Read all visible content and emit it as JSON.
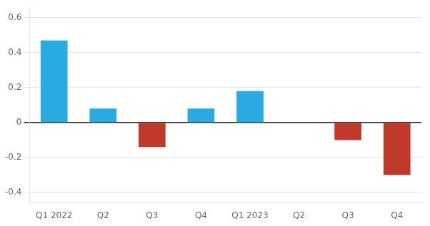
{
  "chart_data": {
    "type": "bar",
    "categories": [
      "Q1 2022",
      "Q2",
      "Q3",
      "Q4",
      "Q1 2023",
      "Q2",
      "Q3",
      "Q4"
    ],
    "values": [
      0.47,
      0.08,
      -0.14,
      0.08,
      0.18,
      0.0,
      -0.1,
      -0.3
    ],
    "colors": [
      "#29abe2",
      "#29abe2",
      "#c0392b",
      "#29abe2",
      "#29abe2",
      "#29abe2",
      "#c0392b",
      "#c0392b"
    ],
    "ylim": [
      -0.46,
      0.66
    ],
    "yticks": [
      -0.4,
      -0.2,
      0,
      0.2,
      0.4,
      0.6
    ],
    "grid": true
  }
}
